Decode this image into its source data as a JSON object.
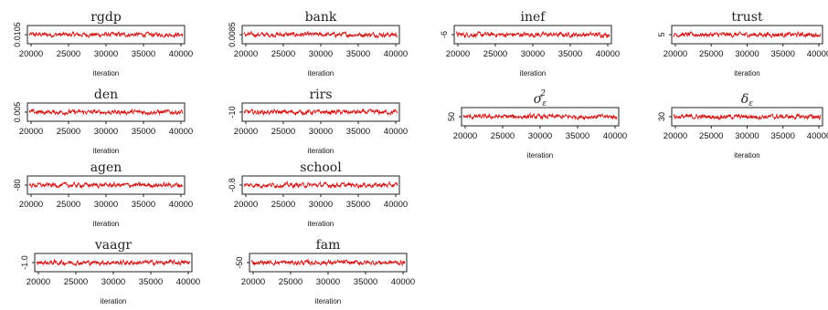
{
  "chart_data": [
    {
      "type": "line",
      "title": "rgdp",
      "title_math": false,
      "xlabel": "iteration",
      "x_range": [
        20000,
        40000
      ],
      "x_ticks": [
        20000,
        25000,
        30000,
        35000,
        40000
      ],
      "y_tick": "0.0105",
      "y_mean": 0.0105,
      "y_amp": 0.0003
    },
    {
      "type": "line",
      "title": "bank",
      "title_math": false,
      "xlabel": "iteration",
      "x_range": [
        20000,
        40000
      ],
      "x_ticks": [
        20000,
        25000,
        30000,
        35000,
        40000
      ],
      "y_tick": "0.0085",
      "y_mean": 0.0087,
      "y_amp": 0.0003
    },
    {
      "type": "line",
      "title": "inef",
      "title_math": false,
      "xlabel": "iteration",
      "x_range": [
        20000,
        40000
      ],
      "x_ticks": [
        20000,
        25000,
        30000,
        35000,
        40000
      ],
      "y_tick": "-6",
      "y_mean": -5.5,
      "y_amp": 1
    },
    {
      "type": "line",
      "title": "trust",
      "title_math": false,
      "xlabel": "iteration",
      "x_range": [
        20000,
        40000
      ],
      "x_ticks": [
        20000,
        25000,
        30000,
        35000,
        40000
      ],
      "y_tick": "5",
      "y_mean": 5.4,
      "y_amp": 0.8
    },
    {
      "type": "line",
      "title": "den",
      "title_math": false,
      "xlabel": "iteration",
      "x_range": [
        20000,
        40000
      ],
      "x_ticks": [
        20000,
        25000,
        30000,
        35000,
        40000
      ],
      "y_tick": "0.005",
      "y_mean": 0.0055,
      "y_amp": 0.001
    },
    {
      "type": "line",
      "title": "rirs",
      "title_math": false,
      "xlabel": "iteration",
      "x_range": [
        20000,
        40000
      ],
      "x_ticks": [
        20000,
        25000,
        30000,
        35000,
        40000
      ],
      "y_tick": "-10",
      "y_mean": -9.5,
      "y_amp": 1.5
    },
    {
      "type": "line",
      "title": "σ",
      "title_math": true,
      "title_sub": "ε",
      "title_sup": "2",
      "xlabel": "iteration",
      "x_range": [
        20000,
        40000
      ],
      "x_ticks": [
        20000,
        25000,
        30000,
        35000,
        40000
      ],
      "y_tick": "50",
      "y_mean": 52,
      "y_amp": 4
    },
    {
      "type": "line",
      "title": "δ",
      "title_math": true,
      "title_sub": "ε",
      "xlabel": "iteration",
      "x_range": [
        20000,
        40000
      ],
      "x_ticks": [
        20000,
        25000,
        30000,
        35000,
        40000
      ],
      "y_tick": "30",
      "y_mean": 32,
      "y_amp": 3
    },
    {
      "type": "line",
      "title": "agen",
      "title_math": false,
      "xlabel": "iteration",
      "x_range": [
        20000,
        40000
      ],
      "x_ticks": [
        20000,
        25000,
        30000,
        35000,
        40000
      ],
      "y_tick": "-80",
      "y_mean": -79,
      "y_amp": 3
    },
    {
      "type": "line",
      "title": "school",
      "title_math": false,
      "xlabel": "iteration",
      "x_range": [
        20000,
        40000
      ],
      "x_ticks": [
        20000,
        25000,
        30000,
        35000,
        40000
      ],
      "y_tick": "-0.8",
      "y_mean": -0.79,
      "y_amp": 0.05
    },
    {
      "type": "line",
      "title": "vaagr",
      "title_math": false,
      "xlabel": "iteration",
      "x_range": [
        20000,
        40000
      ],
      "x_ticks": [
        20000,
        25000,
        30000,
        35000,
        40000
      ],
      "y_tick": "-1.0",
      "y_mean": -0.95,
      "y_amp": 0.15
    },
    {
      "type": "line",
      "title": "fam",
      "title_math": false,
      "xlabel": "iteration",
      "x_range": [
        20000,
        40000
      ],
      "x_ticks": [
        20000,
        25000,
        30000,
        35000,
        40000
      ],
      "y_tick": "-50",
      "y_mean": -49,
      "y_amp": 3
    }
  ],
  "colors": {
    "trace": "#d11414",
    "axis": "#222222",
    "background": "#ffffff"
  }
}
